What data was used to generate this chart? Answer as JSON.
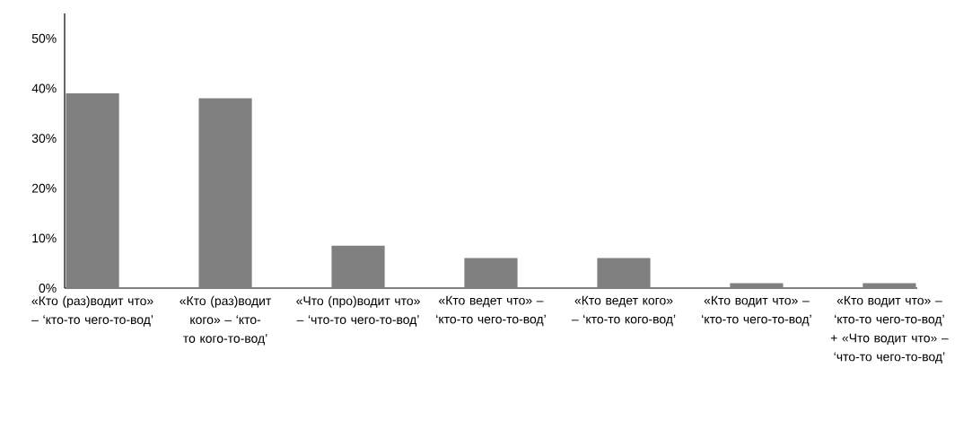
{
  "chart_data": {
    "type": "bar",
    "categories": [
      "«Кто (раз)водит что» – ‘кто-то чего-то-вод’",
      "«Кто (раз)водит кого» – ‘кто-то кого-то-вод’",
      "«Что (про)водит что» – ‘что-то чего-то-вод’",
      "«Кто ведет что» – ‘кто-то чего-то-вод’",
      "«Кто ведет кого» – ‘кто-то кого-вод’",
      "«Кто водит что» – ‘кто-то чего-то-вод’",
      "«Кто водит что» – ‘кто-то чего-то-вод’ + «Что водит что» – ‘что-то чего-то-вод’"
    ],
    "values": [
      39,
      38,
      8.5,
      6,
      6,
      1,
      1
    ],
    "color": "#808080",
    "ylim": [
      0,
      55
    ],
    "yticks": [
      {
        "value": 0,
        "label": "0%"
      },
      {
        "value": 10,
        "label": "10%"
      },
      {
        "value": 20,
        "label": "20%"
      },
      {
        "value": 30,
        "label": "30%"
      },
      {
        "value": 40,
        "label": "40%"
      },
      {
        "value": 50,
        "label": "50%"
      }
    ],
    "grid": false
  }
}
